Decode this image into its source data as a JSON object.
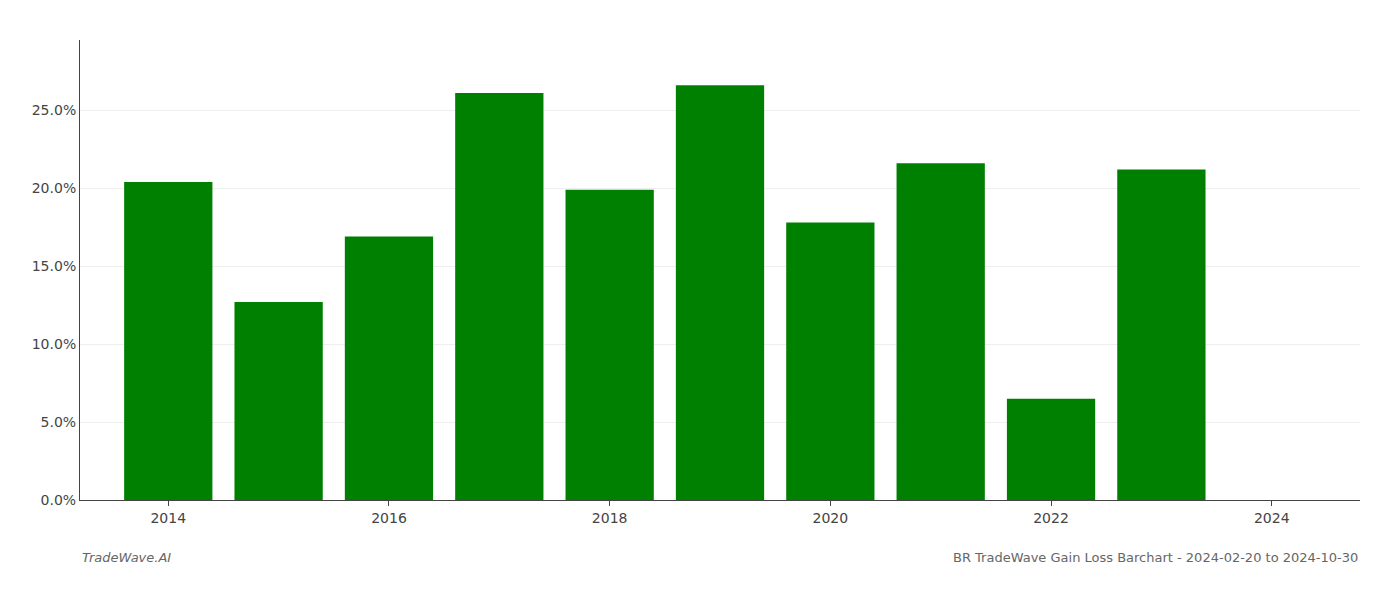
{
  "chart_data": {
    "type": "bar",
    "x": [
      2014,
      2015,
      2016,
      2017,
      2018,
      2019,
      2020,
      2021,
      2022,
      2023
    ],
    "values": [
      0.204,
      0.127,
      0.169,
      0.261,
      0.199,
      0.266,
      0.178,
      0.216,
      0.065,
      0.212
    ],
    "color": "#008000",
    "xlim": [
      2013.2,
      2024.8
    ],
    "xticks": [
      2014,
      2016,
      2018,
      2020,
      2022,
      2024
    ],
    "ylim": [
      0,
      0.295
    ],
    "yticks": [
      {
        "value": 0.0,
        "label": "0.0%"
      },
      {
        "value": 0.05,
        "label": "5.0%"
      },
      {
        "value": 0.1,
        "label": "10.0%"
      },
      {
        "value": 0.15,
        "label": "15.0%"
      },
      {
        "value": 0.2,
        "label": "20.0%"
      },
      {
        "value": 0.25,
        "label": "25.0%"
      }
    ],
    "grid": true,
    "annotations": [
      "TradeWave.AI",
      "BR TradeWave Gain Loss Barchart - 2024-02-20 to 2024-10-30"
    ]
  }
}
